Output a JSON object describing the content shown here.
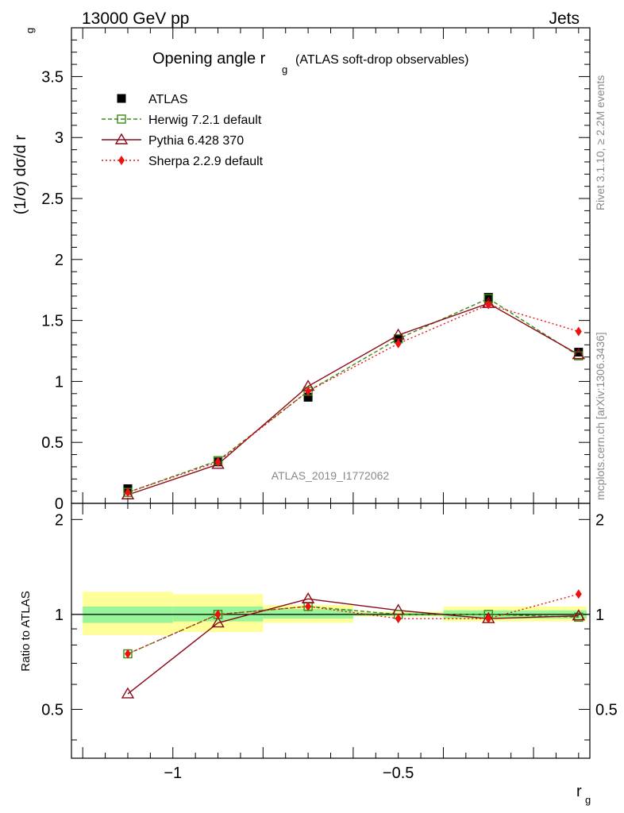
{
  "header": {
    "left": "13000 GeV pp",
    "right": "Jets",
    "title_main": "Opening angle r",
    "title_sub": "g",
    "title_paren": "(ATLAS soft-drop observables)"
  },
  "side": {
    "rivet": "Rivet 3.1.10, ≥ 2.2M events",
    "mcplots": "mcplots.cern.ch [arXiv:1306.3436]"
  },
  "watermark": "ATLAS_2019_I1772062",
  "axes": {
    "main_ylabel": "(1/σ) dσ/d r",
    "main_ylabel_sub": "g",
    "ratio_ylabel": "Ratio to ATLAS",
    "xlabel": "r",
    "xlabel_sub": "g"
  },
  "chart_data": [
    {
      "type": "scatter",
      "panel": "main",
      "x": [
        -1.1,
        -0.9,
        -0.7,
        -0.5,
        -0.3,
        -0.1
      ],
      "xlim": [
        -1.225,
        -0.075
      ],
      "ylim": [
        0,
        3.9
      ],
      "yticks": [
        0,
        0.5,
        1,
        1.5,
        2,
        2.5,
        3,
        3.5
      ],
      "ytick_labels": [
        "0",
        "0.5",
        "1",
        "1.5",
        "2",
        "2.5",
        "3",
        "3.5"
      ],
      "xticks": [
        -1,
        -0.5
      ],
      "xtick_labels": [
        "−1",
        "−0.5"
      ],
      "legend_position": "top-left",
      "series": [
        {
          "name": "ATLAS",
          "color": "#000000",
          "marker": "filled-square",
          "values": [
            0.12,
            0.34,
            0.87,
            1.35,
            1.69,
            1.24
          ]
        },
        {
          "name": "Herwig 7.2.1 default",
          "color": "#3a8a10",
          "marker": "open-square",
          "line": "dashed",
          "values": [
            0.09,
            0.35,
            0.92,
            1.35,
            1.68,
            1.21
          ]
        },
        {
          "name": "Pythia 6.428 370",
          "color": "#8b0a1a",
          "marker": "open-triangle",
          "line": "solid",
          "values": [
            0.07,
            0.32,
            0.96,
            1.38,
            1.64,
            1.22
          ]
        },
        {
          "name": "Sherpa 2.2.9 default",
          "color": "#ee1111",
          "marker": "filled-diamond",
          "line": "dotted",
          "values": [
            0.09,
            0.34,
            0.92,
            1.31,
            1.63,
            1.41
          ]
        }
      ]
    },
    {
      "type": "scatter",
      "panel": "ratio",
      "x": [
        -1.1,
        -0.9,
        -0.7,
        -0.5,
        -0.3,
        -0.1
      ],
      "xlim": [
        -1.225,
        -0.075
      ],
      "ylim": [
        0.35,
        2.25
      ],
      "yticks": [
        0.5,
        1,
        2
      ],
      "ytick_labels": [
        "0.5",
        "1",
        "2"
      ],
      "bands": {
        "edges": [
          -1.2,
          -1.0,
          -0.8,
          -0.6,
          -0.4,
          -0.2,
          0.0
        ],
        "yellow": [
          [
            0.86,
            1.18
          ],
          [
            0.88,
            1.16
          ],
          [
            0.94,
            1.07
          ],
          [
            0.985,
            1.02
          ],
          [
            0.95,
            1.06
          ],
          [
            0.95,
            1.06
          ]
        ],
        "green": [
          [
            0.94,
            1.06
          ],
          [
            0.95,
            1.06
          ],
          [
            0.97,
            1.04
          ],
          [
            0.99,
            1.012
          ],
          [
            0.97,
            1.03
          ],
          [
            0.97,
            1.03
          ]
        ]
      },
      "series": [
        {
          "name": "Herwig 7.2.1 default",
          "color": "#3a8a10",
          "marker": "open-square",
          "line": "dashed",
          "values": [
            0.75,
            1.0,
            1.06,
            1.0,
            1.0,
            0.98
          ]
        },
        {
          "name": "Pythia 6.428 370",
          "color": "#8b0a1a",
          "marker": "open-triangle",
          "line": "solid",
          "values": [
            0.56,
            0.94,
            1.12,
            1.03,
            0.97,
            0.99
          ]
        },
        {
          "name": "Sherpa 2.2.9 default",
          "color": "#ee1111",
          "marker": "filled-diamond",
          "line": "dotted",
          "values": [
            0.75,
            1.0,
            1.06,
            0.97,
            0.97,
            1.16
          ]
        }
      ]
    }
  ]
}
